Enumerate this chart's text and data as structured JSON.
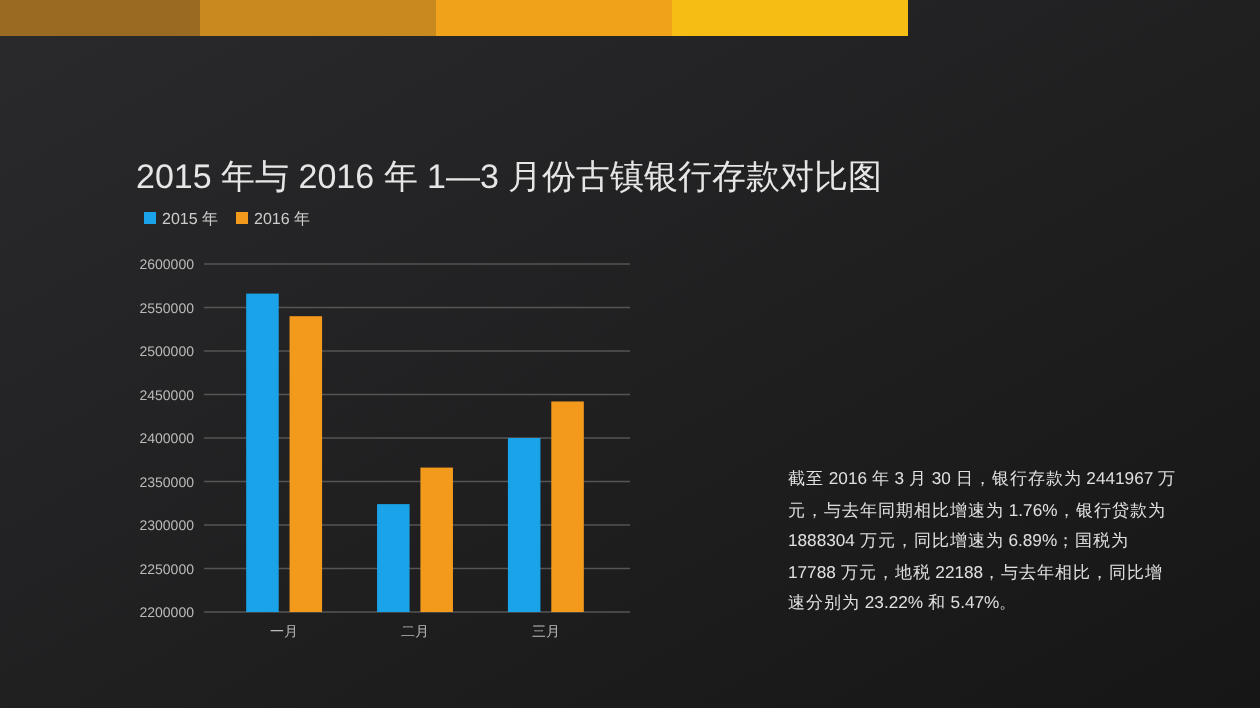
{
  "chart_data": {
    "type": "bar",
    "title": "2015 年与 2016 年 1—3 月份古镇银行存款对比图",
    "categories": [
      "一月",
      "二月",
      "三月"
    ],
    "series": [
      {
        "name": "2015 年",
        "color": "#1aa3e8",
        "values": [
          2566000,
          2324000,
          2400000
        ]
      },
      {
        "name": "2016 年",
        "color": "#f39a1c",
        "values": [
          2540000,
          2366000,
          2442000
        ]
      }
    ],
    "ylim": [
      2200000,
      2600000
    ],
    "yticks": [
      2200000,
      2250000,
      2300000,
      2350000,
      2400000,
      2450000,
      2500000,
      2550000,
      2600000
    ],
    "grid": "y",
    "legend": "top left",
    "annotations": [
      "截至 2016 年 3 月 30 日，银行存款为 2441967 万元，与去年同期相比增速为 1.76%，银行贷款为 1888304 万元，同比增速为 6.89%；国税为 17788 万元，地税 22188，与去年相比，同比增速分别为 23.22% 和 5.47%。"
    ]
  }
}
